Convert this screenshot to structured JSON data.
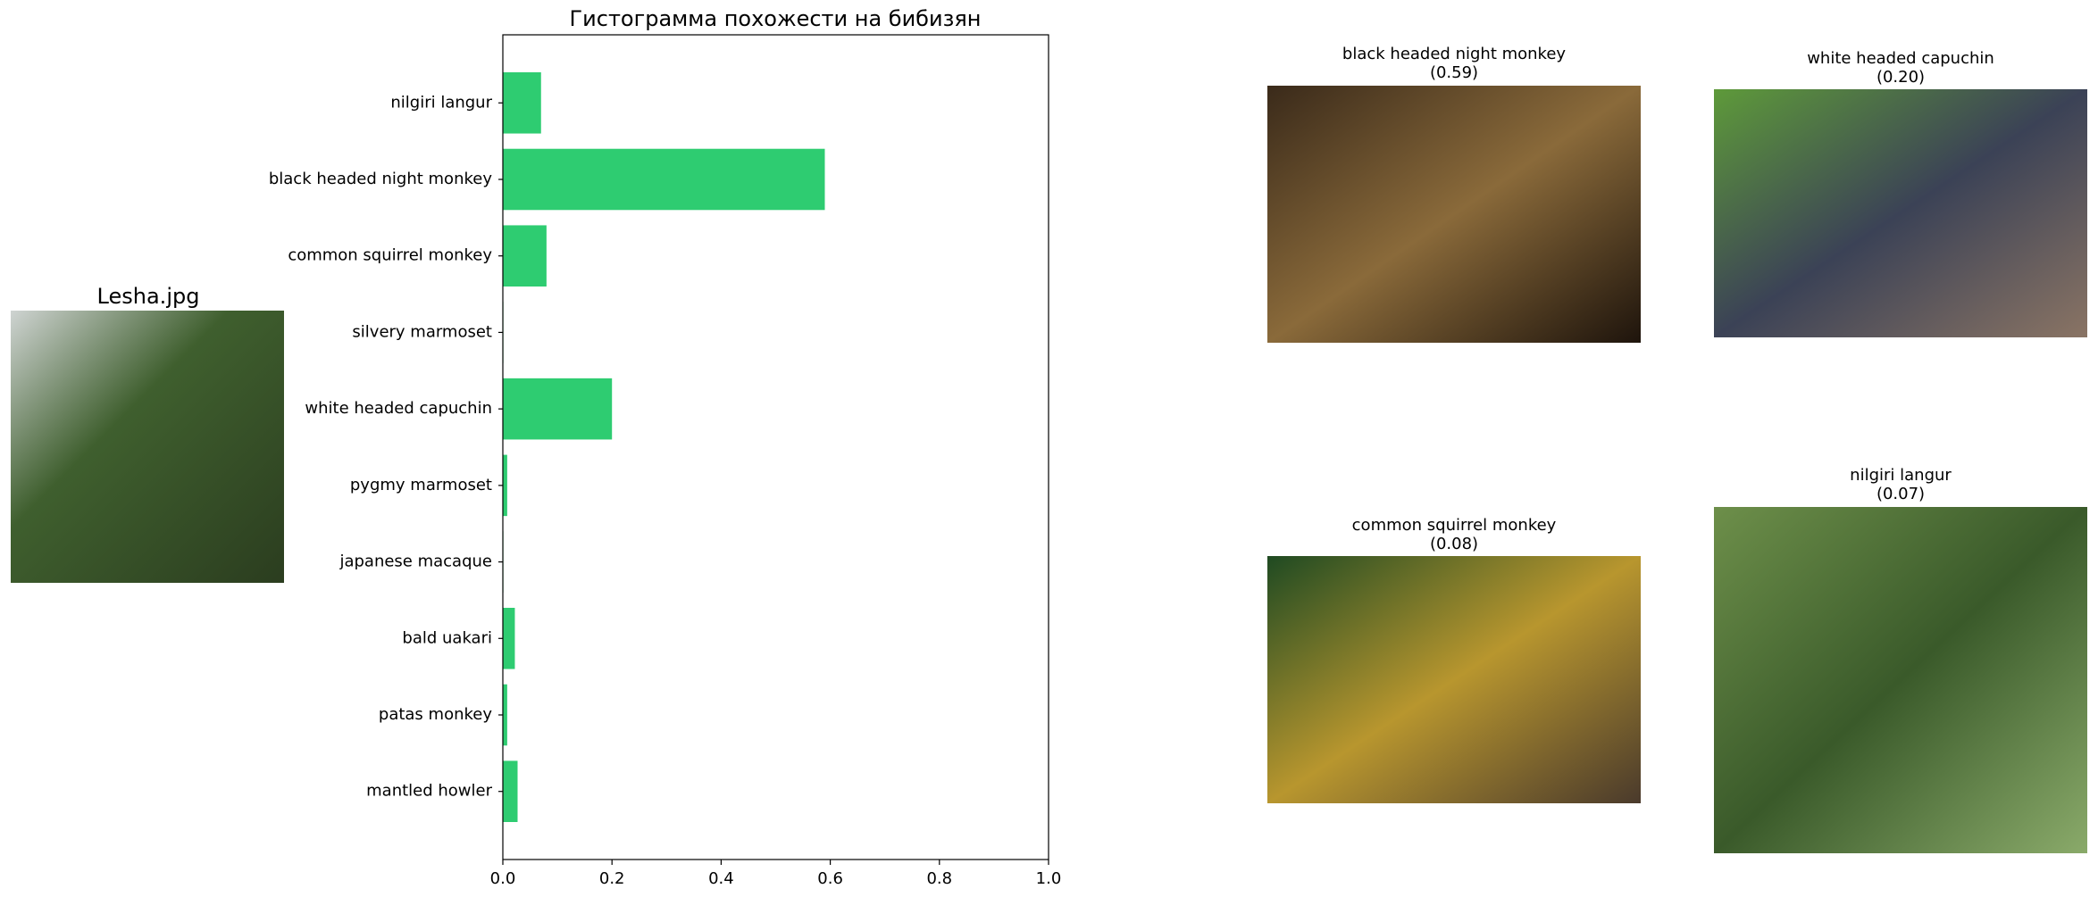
{
  "chart_data": {
    "type": "barh",
    "title": "Гистограмма похожести на бибизян",
    "categories": [
      "nilgiri langur",
      "black headed night monkey",
      "common squirrel monkey",
      "silvery marmoset",
      "white headed capuchin",
      "pygmy marmoset",
      "japanese macaque",
      "bald uakari",
      "patas monkey",
      "mantled howler"
    ],
    "values": [
      0.07,
      0.59,
      0.08,
      0.001,
      0.2,
      0.008,
      0.001,
      0.022,
      0.008,
      0.027
    ],
    "color": "#2ecc71",
    "xlim": [
      0,
      1
    ],
    "xticks": [
      {
        "value": 0,
        "label": "0.0"
      },
      {
        "value": 0.2,
        "label": "0.2"
      },
      {
        "value": 0.4,
        "label": "0.4"
      },
      {
        "value": 0.6,
        "label": "0.6"
      },
      {
        "value": 0.8,
        "label": "0.8"
      },
      {
        "value": 1,
        "label": "1.0"
      }
    ],
    "grid": false
  },
  "input_image": {
    "title": "Lesha.jpg"
  },
  "matches": [
    {
      "name": "black headed night monkey",
      "score": "(0.59)"
    },
    {
      "name": "white headed capuchin",
      "score": "(0.20)"
    },
    {
      "name": "common squirrel monkey",
      "score": "(0.08)"
    },
    {
      "name": "nilgiri langur",
      "score": "(0.07)"
    }
  ]
}
